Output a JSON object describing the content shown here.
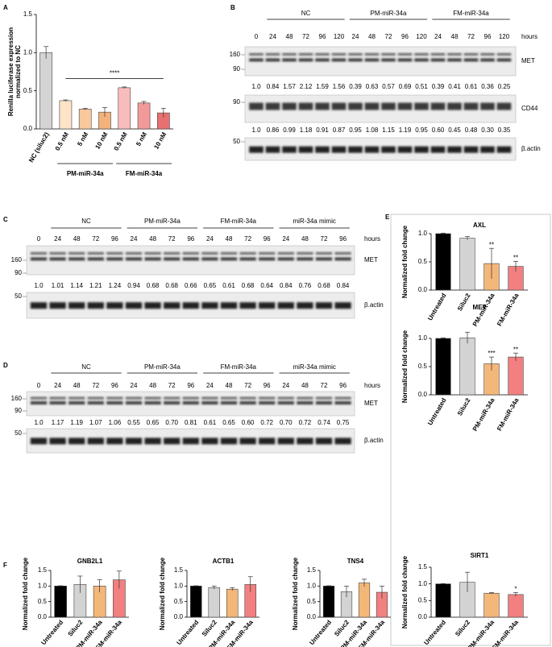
{
  "panel_labels": [
    "A",
    "B",
    "C",
    "D",
    "E",
    "F"
  ],
  "chart_data": [
    {
      "type": "bar",
      "y_label": [
        "Renilla luciferase expression",
        "normalized to NC"
      ],
      "categories": [
        "NC (siluc2)",
        "0.5 nM",
        "5 nM",
        "10 nM",
        "0.5 nM",
        "5 nM",
        "10 nM"
      ],
      "values": [
        1.0,
        0.37,
        0.26,
        0.22,
        0.54,
        0.34,
        0.21
      ],
      "errors": [
        0.08,
        0.01,
        0.01,
        0.06,
        0.01,
        0.02,
        0.06
      ],
      "colors": [
        "#d4d4d4",
        "#fde3c8",
        "#f9c99b",
        "#f3b27a",
        "#f9bcbc",
        "#f29a9a",
        "#e97070"
      ],
      "ylim": [
        0,
        1.5
      ],
      "yticks": [
        {
          "value": 0,
          "label": "0.0"
        },
        0.5,
        {
          "value": 1,
          "label": "1.0"
        },
        1.5
      ],
      "groups": [
        "PM-miR-34a",
        "FM-miR-34a"
      ],
      "significance_label": "****"
    },
    {
      "type": "bar",
      "title": "AXL",
      "y_label": "Normalized fold change",
      "categories": [
        "Untreated",
        "Siluc2",
        "PM-miR-34a",
        "FM-miR-34a"
      ],
      "values": [
        1.0,
        0.92,
        0.47,
        0.42
      ],
      "errors": [
        0.01,
        0.03,
        0.27,
        0.09
      ],
      "colors": [
        "#000000",
        "#d3d3d3",
        "#f4b77a",
        "#f28080"
      ],
      "significance": [
        null,
        null,
        "**",
        "**"
      ],
      "ylim": [
        0,
        1.0
      ],
      "yticks": [
        {
          "value": 0,
          "label": "0.0"
        },
        0.5,
        {
          "value": 1,
          "label": "1.0"
        }
      ]
    },
    {
      "type": "bar",
      "title": "MET",
      "y_label": "Normalized fold change",
      "categories": [
        "Untreated",
        "Siluc2",
        "PM-miR-34a",
        "FM-miR-34a"
      ],
      "values": [
        1.0,
        1.01,
        0.55,
        0.67
      ],
      "errors": [
        0.01,
        0.1,
        0.12,
        0.07
      ],
      "colors": [
        "#000000",
        "#d3d3d3",
        "#f4b77a",
        "#f28080"
      ],
      "significance": [
        null,
        null,
        "***",
        "**"
      ],
      "ylim": [
        0,
        1.0
      ],
      "yticks": [
        {
          "value": 0,
          "label": "0.0"
        },
        0.5,
        {
          "value": 1,
          "label": "1.0"
        }
      ]
    },
    {
      "type": "bar",
      "title": "SIRT1",
      "y_label": "Normalized fold change",
      "categories": [
        "Untreated",
        "Siluc2",
        "PM-miR-34a",
        "FM-miR-34a"
      ],
      "values": [
        1.0,
        1.05,
        0.72,
        0.68
      ],
      "errors": [
        0.01,
        0.3,
        0.02,
        0.06
      ],
      "colors": [
        "#000000",
        "#d3d3d3",
        "#f4b77a",
        "#f28080"
      ],
      "significance": [
        null,
        null,
        null,
        "*"
      ],
      "ylim": [
        0,
        1.5
      ],
      "yticks": [
        {
          "value": 0,
          "label": "0.0"
        },
        0.5,
        {
          "value": 1,
          "label": "1.0"
        },
        1.5
      ]
    },
    {
      "type": "bar",
      "title": "GNB2L1",
      "y_label": "Normalized fold change",
      "categories": [
        "Untreated",
        "Siluc2",
        "PM-miR-34a",
        "FM-miR-34a"
      ],
      "values": [
        1.0,
        1.05,
        1.0,
        1.2
      ],
      "errors": [
        0.01,
        0.27,
        0.2,
        0.28
      ],
      "colors": [
        "#000000",
        "#d3d3d3",
        "#f4b77a",
        "#f28080"
      ],
      "ylim": [
        0,
        1.5
      ],
      "yticks": [
        {
          "value": 0,
          "label": "0.0"
        },
        0.5,
        {
          "value": 1,
          "label": "1.0"
        },
        1.5
      ]
    },
    {
      "type": "bar",
      "title": "ACTB1",
      "y_label": "Normalized fold change",
      "categories": [
        "Untreated",
        "Siluc2",
        "PM-miR-34a",
        "FM-miR-34a"
      ],
      "values": [
        1.0,
        0.95,
        0.9,
        1.05
      ],
      "errors": [
        0.01,
        0.05,
        0.05,
        0.25
      ],
      "colors": [
        "#000000",
        "#d3d3d3",
        "#f4b77a",
        "#f28080"
      ],
      "ylim": [
        0,
        1.5
      ],
      "yticks": [
        {
          "value": 0,
          "label": "0.0"
        },
        0.5,
        {
          "value": 1,
          "label": "1.0"
        },
        1.5
      ]
    },
    {
      "type": "bar",
      "title": "TNS4",
      "y_label": "Normalized fold change",
      "categories": [
        "Untreated",
        "Siluc2",
        "PM-miR-34a",
        "FM-miR-34a"
      ],
      "values": [
        1.0,
        0.82,
        1.1,
        0.8
      ],
      "errors": [
        0.01,
        0.18,
        0.12,
        0.2
      ],
      "colors": [
        "#000000",
        "#d3d3d3",
        "#f4b77a",
        "#f28080"
      ],
      "ylim": [
        0,
        1.5
      ],
      "yticks": [
        {
          "value": 0,
          "label": "0.0"
        },
        0.5,
        {
          "value": 1,
          "label": "1.0"
        },
        1.5
      ]
    }
  ],
  "blots": {
    "B": {
      "groups": [
        "NC",
        "PM-miR-34a",
        "FM-miR-34a"
      ],
      "lanes": [
        0,
        24,
        48,
        72,
        96,
        120,
        24,
        48,
        72,
        96,
        120,
        24,
        48,
        72,
        96,
        120
      ],
      "unit": "hours",
      "rows": [
        {
          "label": "MET",
          "markers": [
            160,
            90
          ],
          "quantification": [
            "1.0",
            "0.84",
            "1.57",
            "2.12",
            "1.59",
            "1.56",
            "0.39",
            "0.63",
            "0.57",
            "0.69",
            "0.51",
            "0.39",
            "0.41",
            "0.61",
            "0.36",
            "0.25"
          ]
        },
        {
          "label": "CD44",
          "markers": [
            90
          ],
          "quantification": [
            "1.0",
            "0.86",
            "0.99",
            "1.18",
            "0.91",
            "0.87",
            "0.95",
            "1.08",
            "1.15",
            "1.19",
            "0.95",
            "0.60",
            "0.45",
            "0.48",
            "0.30",
            "0.35"
          ]
        },
        {
          "label": "β.actin",
          "markers": [
            50
          ]
        }
      ]
    },
    "C": {
      "groups": [
        "NC",
        "PM-miR-34a",
        "FM-miR-34a",
        "miR-34a mimic"
      ],
      "lanes": [
        0,
        24,
        48,
        72,
        96,
        24,
        48,
        72,
        96,
        24,
        48,
        72,
        96,
        24,
        48,
        72,
        96
      ],
      "unit": "hours",
      "rows": [
        {
          "label": "MET",
          "markers": [
            160,
            90
          ],
          "quantification": [
            "1.0",
            "1.01",
            "1.14",
            "1.21",
            "1.24",
            "0.94",
            "0.68",
            "0.68",
            "0.66",
            "0.65",
            "0.61",
            "0.68",
            "0.64",
            "0.84",
            "0.76",
            "0.68",
            "0.84"
          ]
        },
        {
          "label": "β.actin",
          "markers": [
            50
          ]
        }
      ]
    },
    "D": {
      "groups": [
        "NC",
        "PM-miR-34a",
        "FM-miR-34a",
        "miR-34a mimic"
      ],
      "lanes": [
        0,
        24,
        48,
        72,
        96,
        24,
        48,
        72,
        96,
        24,
        48,
        72,
        96,
        24,
        48,
        72,
        96
      ],
      "unit": "hours",
      "rows": [
        {
          "label": "MET",
          "markers": [
            160,
            90
          ],
          "quantification": [
            "1.0",
            "1.17",
            "1.19",
            "1.07",
            "1.06",
            "0.55",
            "0.65",
            "0.70",
            "0.81",
            "0.61",
            "0.65",
            "0.60",
            "0.72",
            "0.70",
            "0.72",
            "0.74",
            "0.75"
          ]
        },
        {
          "label": "β.actin",
          "markers": [
            50
          ]
        }
      ]
    }
  }
}
